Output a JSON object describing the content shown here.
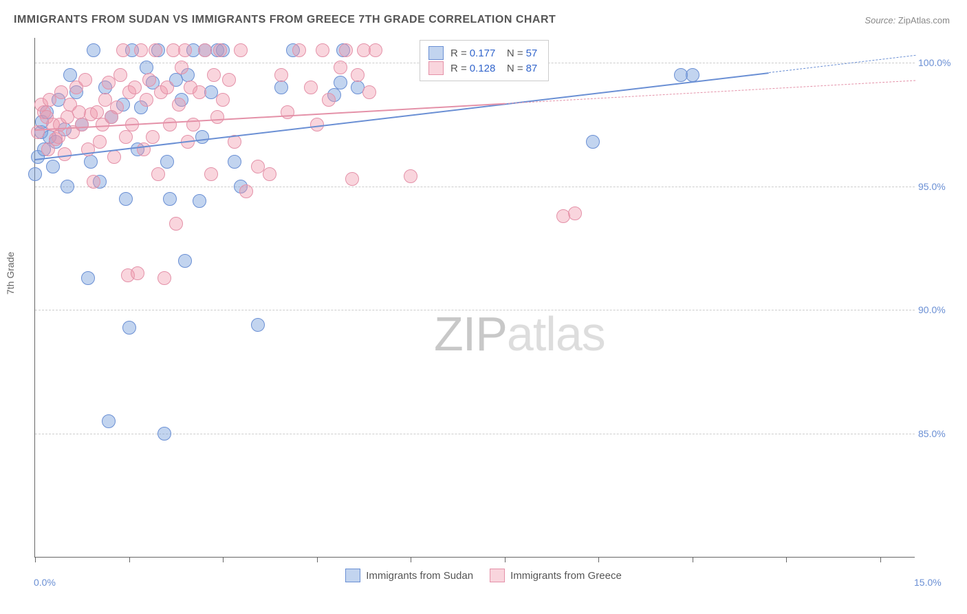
{
  "title": "IMMIGRANTS FROM SUDAN VS IMMIGRANTS FROM GREECE 7TH GRADE CORRELATION CHART",
  "source_label": "Source:",
  "source_value": "ZipAtlas.com",
  "y_axis_title": "7th Grade",
  "watermark_bold": "ZIP",
  "watermark_light": "atlas",
  "chart": {
    "type": "scatter",
    "background_color": "#ffffff",
    "grid_color": "#cccccc",
    "axis_color": "#666666",
    "xlim": [
      0,
      15
    ],
    "ylim": [
      80,
      101
    ],
    "y_ticks": [
      85,
      90,
      95,
      100
    ],
    "y_tick_labels": [
      "85.0%",
      "90.0%",
      "95.0%",
      "100.0%"
    ],
    "x_ticks": [
      0,
      1.6,
      3.2,
      4.8,
      6.4,
      8.0,
      9.6,
      11.2,
      12.8,
      14.4
    ],
    "x_tick_labels_shown": [
      {
        "x": 0,
        "label": "0.0%"
      },
      {
        "x": 15,
        "label": "15.0%"
      }
    ],
    "point_radius": 10,
    "point_stroke_width": 1.5,
    "series": [
      {
        "name": "Immigrants from Sudan",
        "color_fill": "rgba(120,160,220,0.45)",
        "color_stroke": "#6a8fd4",
        "R": "0.177",
        "N": "57",
        "trend": {
          "x1": 0,
          "y1": 96.1,
          "x2": 15,
          "y2": 100.3,
          "solid_until_x": 12.5
        },
        "points": [
          [
            0.0,
            95.5
          ],
          [
            0.05,
            96.2
          ],
          [
            0.1,
            97.2
          ],
          [
            0.12,
            97.6
          ],
          [
            0.15,
            96.5
          ],
          [
            0.2,
            98.0
          ],
          [
            0.25,
            97.0
          ],
          [
            0.3,
            95.8
          ],
          [
            0.35,
            96.8
          ],
          [
            0.4,
            98.5
          ],
          [
            0.5,
            97.3
          ],
          [
            0.55,
            95.0
          ],
          [
            0.6,
            99.5
          ],
          [
            0.7,
            98.8
          ],
          [
            0.8,
            97.5
          ],
          [
            0.9,
            91.3
          ],
          [
            0.95,
            96.0
          ],
          [
            1.0,
            100.5
          ],
          [
            1.1,
            95.2
          ],
          [
            1.2,
            99.0
          ],
          [
            1.25,
            85.5
          ],
          [
            1.3,
            97.8
          ],
          [
            1.5,
            98.3
          ],
          [
            1.55,
            94.5
          ],
          [
            1.6,
            89.3
          ],
          [
            1.65,
            100.5
          ],
          [
            1.75,
            96.5
          ],
          [
            1.8,
            98.2
          ],
          [
            1.9,
            99.8
          ],
          [
            2.0,
            99.2
          ],
          [
            2.1,
            100.5
          ],
          [
            2.2,
            85.0
          ],
          [
            2.25,
            96.0
          ],
          [
            2.3,
            94.5
          ],
          [
            2.4,
            99.3
          ],
          [
            2.5,
            98.5
          ],
          [
            2.55,
            92.0
          ],
          [
            2.6,
            99.5
          ],
          [
            2.7,
            100.5
          ],
          [
            2.8,
            94.4
          ],
          [
            2.85,
            97.0
          ],
          [
            2.9,
            100.5
          ],
          [
            3.0,
            98.8
          ],
          [
            3.1,
            100.5
          ],
          [
            3.2,
            100.5
          ],
          [
            3.4,
            96.0
          ],
          [
            3.5,
            95.0
          ],
          [
            3.8,
            89.4
          ],
          [
            4.2,
            99.0
          ],
          [
            4.4,
            100.5
          ],
          [
            5.1,
            98.7
          ],
          [
            5.2,
            99.2
          ],
          [
            5.25,
            100.5
          ],
          [
            5.5,
            99.0
          ],
          [
            9.5,
            96.8
          ],
          [
            11.2,
            99.5
          ],
          [
            11.0,
            99.5
          ]
        ]
      },
      {
        "name": "Immigrants from Greece",
        "color_fill": "rgba(240,150,170,0.40)",
        "color_stroke": "#e491a8",
        "R": "0.128",
        "N": "87",
        "trend": {
          "x1": 0,
          "y1": 97.3,
          "x2": 15,
          "y2": 99.3,
          "solid_until_x": 8.0
        },
        "points": [
          [
            0.05,
            97.2
          ],
          [
            0.1,
            98.3
          ],
          [
            0.15,
            98.0
          ],
          [
            0.2,
            97.8
          ],
          [
            0.22,
            96.5
          ],
          [
            0.25,
            98.5
          ],
          [
            0.3,
            97.5
          ],
          [
            0.35,
            96.9
          ],
          [
            0.4,
            97.0
          ],
          [
            0.42,
            97.5
          ],
          [
            0.45,
            98.8
          ],
          [
            0.5,
            96.3
          ],
          [
            0.55,
            97.8
          ],
          [
            0.6,
            98.3
          ],
          [
            0.65,
            97.2
          ],
          [
            0.7,
            99.0
          ],
          [
            0.75,
            98.0
          ],
          [
            0.8,
            97.5
          ],
          [
            0.85,
            99.3
          ],
          [
            0.9,
            96.5
          ],
          [
            0.95,
            97.9
          ],
          [
            1.0,
            95.2
          ],
          [
            1.05,
            98.0
          ],
          [
            1.1,
            96.8
          ],
          [
            1.15,
            97.5
          ],
          [
            1.2,
            98.5
          ],
          [
            1.25,
            99.2
          ],
          [
            1.3,
            97.8
          ],
          [
            1.35,
            96.2
          ],
          [
            1.4,
            98.2
          ],
          [
            1.45,
            99.5
          ],
          [
            1.5,
            100.5
          ],
          [
            1.55,
            97.0
          ],
          [
            1.58,
            91.4
          ],
          [
            1.6,
            98.8
          ],
          [
            1.65,
            97.5
          ],
          [
            1.7,
            99.0
          ],
          [
            1.75,
            91.5
          ],
          [
            1.8,
            100.5
          ],
          [
            1.85,
            96.5
          ],
          [
            1.9,
            98.5
          ],
          [
            1.95,
            99.3
          ],
          [
            2.0,
            97.0
          ],
          [
            2.05,
            100.5
          ],
          [
            2.1,
            95.5
          ],
          [
            2.15,
            98.8
          ],
          [
            2.2,
            91.3
          ],
          [
            2.25,
            99.0
          ],
          [
            2.3,
            97.5
          ],
          [
            2.35,
            100.5
          ],
          [
            2.4,
            93.5
          ],
          [
            2.45,
            98.3
          ],
          [
            2.5,
            99.8
          ],
          [
            2.55,
            100.5
          ],
          [
            2.6,
            96.8
          ],
          [
            2.65,
            99.0
          ],
          [
            2.7,
            97.5
          ],
          [
            2.8,
            98.8
          ],
          [
            2.9,
            100.5
          ],
          [
            3.0,
            95.5
          ],
          [
            3.05,
            99.5
          ],
          [
            3.1,
            97.8
          ],
          [
            3.15,
            100.5
          ],
          [
            3.2,
            98.5
          ],
          [
            3.3,
            99.3
          ],
          [
            3.4,
            96.8
          ],
          [
            3.5,
            100.5
          ],
          [
            3.6,
            94.8
          ],
          [
            3.8,
            95.8
          ],
          [
            4.0,
            95.5
          ],
          [
            4.2,
            99.5
          ],
          [
            4.3,
            98.0
          ],
          [
            4.5,
            100.5
          ],
          [
            4.7,
            99.0
          ],
          [
            4.8,
            97.5
          ],
          [
            4.9,
            100.5
          ],
          [
            5.0,
            98.5
          ],
          [
            5.2,
            99.8
          ],
          [
            5.3,
            100.5
          ],
          [
            5.4,
            95.3
          ],
          [
            5.5,
            99.5
          ],
          [
            5.6,
            100.5
          ],
          [
            5.7,
            98.8
          ],
          [
            5.8,
            100.5
          ],
          [
            6.4,
            95.4
          ],
          [
            9.0,
            93.8
          ],
          [
            9.2,
            93.9
          ]
        ]
      }
    ]
  },
  "legend_top": {
    "r_label": "R =",
    "n_label": "N ="
  },
  "legend_bottom": [
    {
      "swatch_fill": "rgba(120,160,220,0.45)",
      "swatch_stroke": "#6a8fd4",
      "label": "Immigrants from Sudan"
    },
    {
      "swatch_fill": "rgba(240,150,170,0.40)",
      "swatch_stroke": "#e491a8",
      "label": "Immigrants from Greece"
    }
  ]
}
